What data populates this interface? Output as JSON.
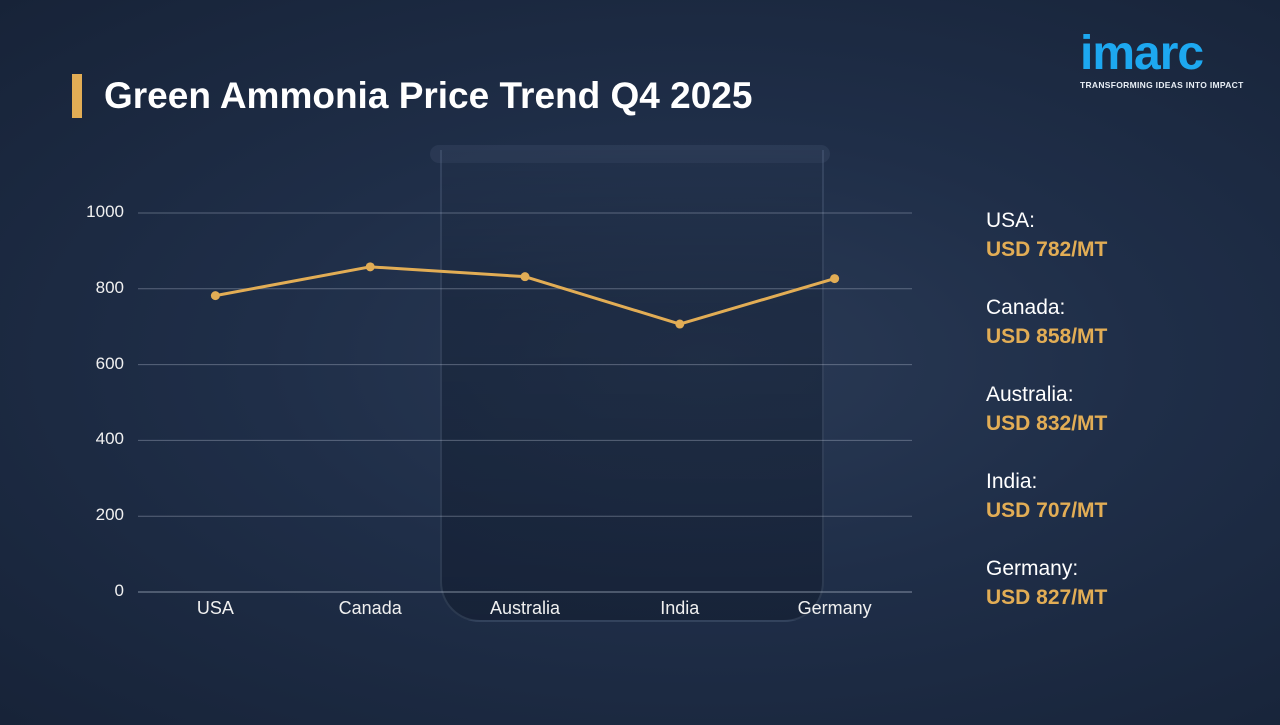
{
  "title": "Green Ammonia Price Trend Q4 2025",
  "logo": {
    "word": "imarc",
    "tagline": "TRANSFORMING IDEAS INTO IMPACT"
  },
  "colors": {
    "accent": "#e2ad55",
    "logo": "#1da8f0",
    "background": "#1f2e48"
  },
  "legend": [
    {
      "country": "USA:",
      "value": "USD 782/MT"
    },
    {
      "country": "Canada:",
      "value": "USD 858/MT"
    },
    {
      "country": "Australia:",
      "value": "USD 832/MT"
    },
    {
      "country": "India:",
      "value": "USD 707/MT"
    },
    {
      "country": "Germany:",
      "value": "USD 827/MT"
    }
  ],
  "chart_data": {
    "type": "line",
    "title": "Green Ammonia Price Trend Q4 2025",
    "categories": [
      "USA",
      "Canada",
      "Australia",
      "India",
      "Germany"
    ],
    "values": [
      782,
      858,
      832,
      707,
      827
    ],
    "xlabel": "",
    "ylabel": "",
    "unit": "USD/MT",
    "ylim": [
      0,
      1000
    ],
    "yticks": [
      0,
      200,
      400,
      600,
      800,
      1000
    ],
    "grid": true,
    "legend_position": "none",
    "line_color": "#e2ad55"
  }
}
